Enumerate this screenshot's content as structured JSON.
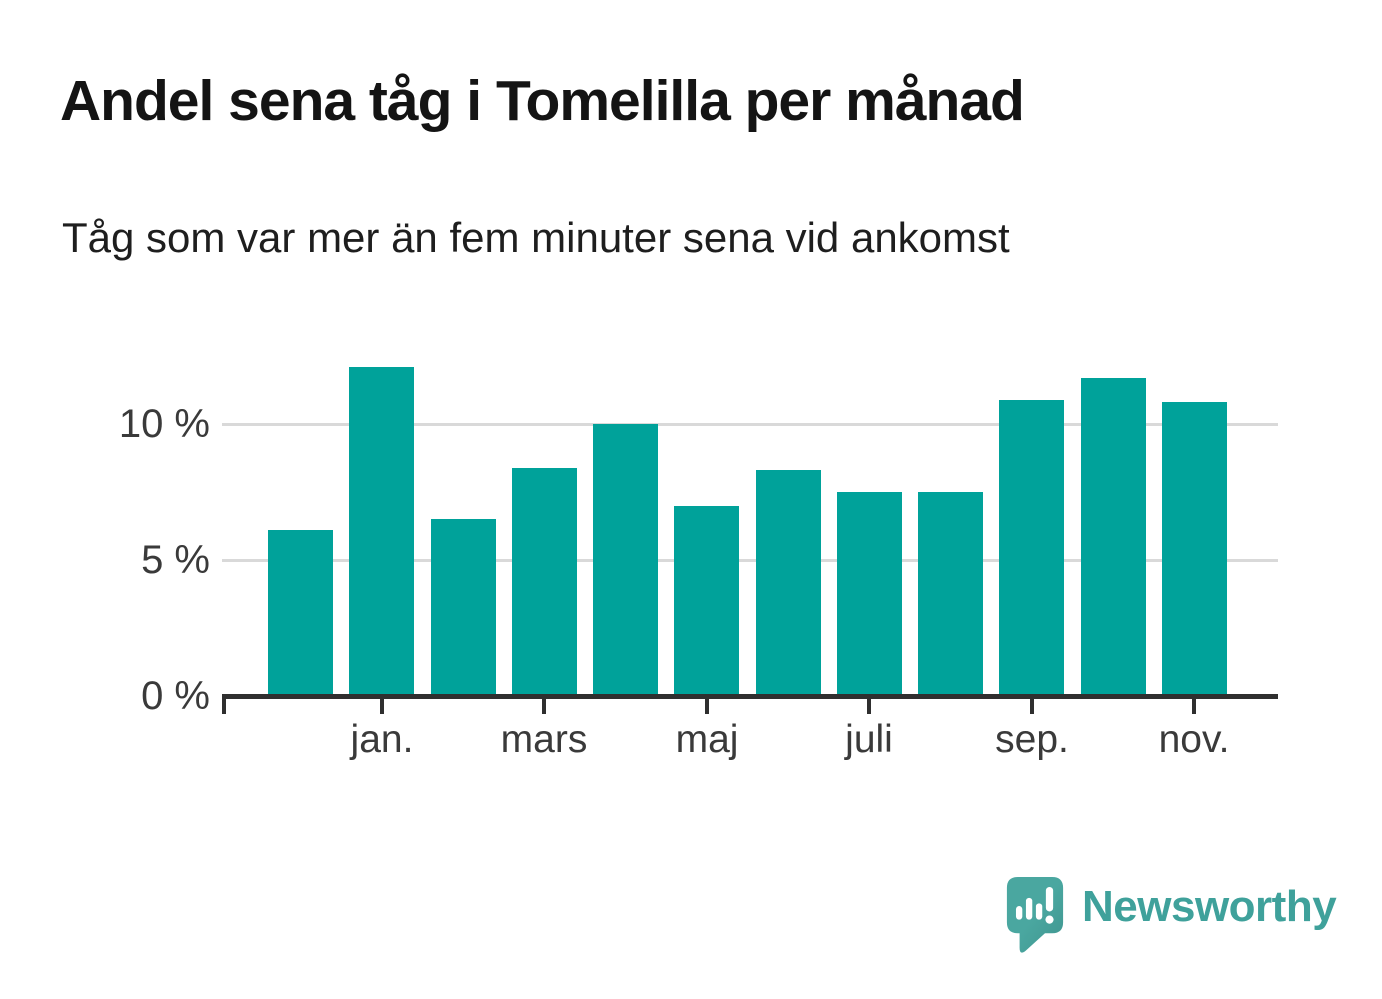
{
  "header": {
    "title": "Andel sena tåg i Tomelilla per månad",
    "subtitle": "Tåg som var mer än fem minuter sena vid ankomst"
  },
  "chart_data": {
    "type": "bar",
    "title": "Andel sena tåg i Tomelilla per månad",
    "subtitle": "Tåg som var mer än fem minuter sena vid ankomst",
    "unit": "%",
    "categories": [
      "",
      "jan.",
      "",
      "mars",
      "",
      "maj",
      "",
      "juli",
      "",
      "sep.",
      "",
      "nov."
    ],
    "values": [
      6.1,
      12.1,
      6.5,
      8.4,
      10.0,
      7.0,
      8.3,
      7.5,
      7.5,
      10.9,
      11.7,
      10.8
    ],
    "y_ticks": [
      {
        "value": 0,
        "label": "0 %"
      },
      {
        "value": 5,
        "label": "5 %"
      },
      {
        "value": 10,
        "label": "10 %"
      }
    ],
    "ylim": [
      0,
      13
    ],
    "xlabel": "",
    "ylabel": "",
    "grid": "horizontal",
    "legend": "none",
    "bar_color": "#00a29a",
    "gridline_color": "#d9d9d9",
    "axis_color": "#2f2f2f"
  },
  "footer": {
    "brand": "Newsworthy",
    "brand_color": "#3fa19b",
    "logo_color_light": "#4aa7a0",
    "logo_color_dark": "#3f958f"
  }
}
